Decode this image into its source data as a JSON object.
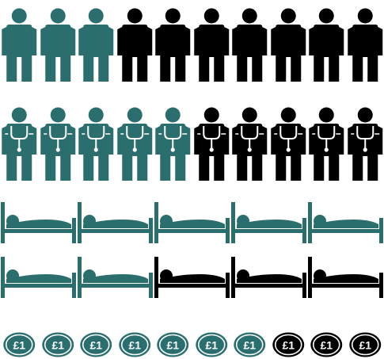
{
  "colors": {
    "highlight": "#2b6e6e",
    "base": "#000000",
    "background": "#ffffff"
  },
  "rows": [
    {
      "name": "people",
      "icon": "person-icon",
      "total": 10,
      "highlighted": 3
    },
    {
      "name": "doctors",
      "icon": "doctor-icon",
      "total": 10,
      "highlighted": 5
    },
    {
      "name": "beds-1",
      "icon": "hospital-bed-icon",
      "total": 5,
      "highlighted": 5
    },
    {
      "name": "beds-2",
      "icon": "hospital-bed-icon",
      "total": 5,
      "highlighted": 2
    },
    {
      "name": "coins",
      "icon": "pound-coin-icon",
      "total": 10,
      "highlighted": 7,
      "coin_label": "£1"
    }
  ]
}
